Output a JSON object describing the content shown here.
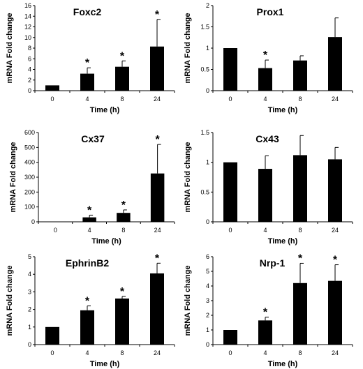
{
  "chart_data": [
    {
      "type": "bar",
      "title": "Foxc2",
      "xlabel": "Time (h)",
      "ylabel": "mRNA Fold change",
      "categories": [
        "0",
        "4",
        "8",
        "24"
      ],
      "values": [
        1.0,
        3.2,
        4.5,
        8.3
      ],
      "errors": [
        0,
        1.1,
        1.1,
        5.1
      ],
      "significant": [
        false,
        true,
        true,
        true
      ],
      "ylim": [
        0,
        16
      ],
      "yticks": [
        "0",
        "2",
        "4",
        "6",
        "8",
        "10",
        "12",
        "14",
        "16"
      ],
      "grid": false
    },
    {
      "type": "bar",
      "title": "Prox1",
      "xlabel": "Time (h)",
      "ylabel": "mRNA Fold change",
      "categories": [
        "0",
        "4",
        "8",
        "24"
      ],
      "values": [
        1.0,
        0.53,
        0.71,
        1.26
      ],
      "errors": [
        0,
        0.19,
        0.11,
        0.45
      ],
      "significant": [
        false,
        true,
        false,
        false
      ],
      "ylim": [
        0,
        2
      ],
      "yticks": [
        "0",
        "0.5",
        "1",
        "1.5",
        "2"
      ],
      "grid": false
    },
    {
      "type": "bar",
      "title": "Cx37",
      "xlabel": "Time (h)",
      "ylabel": "mRNA Fold change",
      "categories": [
        "0",
        "4",
        "8",
        "24"
      ],
      "values": [
        1,
        30,
        60,
        325
      ],
      "errors": [
        0,
        15,
        20,
        195
      ],
      "significant": [
        false,
        true,
        true,
        true
      ],
      "ylim": [
        0,
        600
      ],
      "yticks": [
        "0",
        "100",
        "200",
        "300",
        "400",
        "500",
        "600"
      ],
      "grid": false
    },
    {
      "type": "bar",
      "title": "Cx43",
      "xlabel": "Time (h)",
      "ylabel": "mRNA Fold change",
      "categories": [
        "0",
        "4",
        "8",
        "24"
      ],
      "values": [
        1.0,
        0.89,
        1.12,
        1.05
      ],
      "errors": [
        0,
        0.22,
        0.33,
        0.2
      ],
      "significant": [
        false,
        false,
        false,
        false
      ],
      "ylim": [
        0,
        1.5
      ],
      "yticks": [
        "0",
        "0.5",
        "1",
        "1.5"
      ],
      "grid": false
    },
    {
      "type": "bar",
      "title": "EphrinB2",
      "xlabel": "Time (h)",
      "ylabel": "mRNA Fold change",
      "categories": [
        "0",
        "4",
        "8",
        "24"
      ],
      "values": [
        1.0,
        1.95,
        2.62,
        4.05
      ],
      "errors": [
        0,
        0.25,
        0.12,
        0.58
      ],
      "significant": [
        false,
        true,
        true,
        true
      ],
      "ylim": [
        0,
        5
      ],
      "yticks": [
        "0",
        "1",
        "2",
        "3",
        "4",
        "5"
      ],
      "grid": false
    },
    {
      "type": "bar",
      "title": "Nrp-1",
      "xlabel": "Time (h)",
      "ylabel": "mRNA Fold change",
      "categories": [
        "0",
        "4",
        "8",
        "24"
      ],
      "values": [
        1.0,
        1.65,
        4.2,
        4.35
      ],
      "errors": [
        0,
        0.22,
        1.35,
        1.1
      ],
      "significant": [
        false,
        true,
        true,
        true
      ],
      "ylim": [
        0,
        6
      ],
      "yticks": [
        "0",
        "1",
        "2",
        "3",
        "4",
        "5",
        "6"
      ],
      "grid": false
    }
  ],
  "significance_marker": "*",
  "colors": {
    "bar": "#000000",
    "axis": "#000000",
    "background": "#ffffff"
  }
}
